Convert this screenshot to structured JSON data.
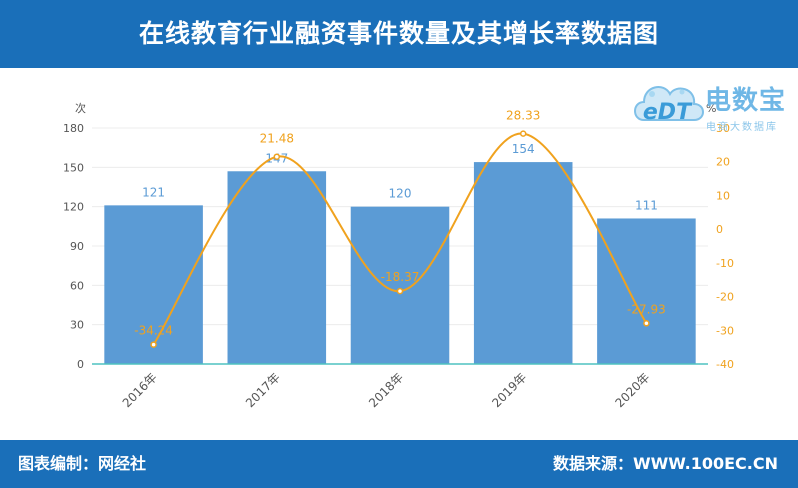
{
  "header": {
    "title": "在线教育行业融资事件数量及其增长率数据图"
  },
  "footer": {
    "left": "图表编制：网经社",
    "right": "数据来源：WWW.100EC.CN"
  },
  "logo": {
    "mark": "eDT",
    "main": "电数宝",
    "sub": "电商大数据库"
  },
  "colors": {
    "bar": "#5b9bd5",
    "line": "#f0a21e",
    "header": "#1a6fb9",
    "bar_label": "#5b9bd5",
    "line_label": "#f0a21e"
  },
  "chart_data": {
    "type": "bar",
    "categories": [
      "2016年",
      "2017年",
      "2018年",
      "2019年",
      "2020年"
    ],
    "series": [
      {
        "values": [
          121,
          147,
          120,
          154,
          111
        ],
        "axis": "left",
        "kind": "bar"
      },
      {
        "values": [
          -34.24,
          21.48,
          -18.37,
          28.33,
          -27.93
        ],
        "axis": "right",
        "kind": "line",
        "smooth": true
      }
    ],
    "left_axis": {
      "unit": "次",
      "ylim": [
        0,
        180
      ],
      "ticks": [
        0,
        30,
        60,
        90,
        120,
        150,
        180
      ]
    },
    "right_axis": {
      "unit": "%",
      "ylim": [
        -40,
        30
      ],
      "ticks": [
        -40,
        -30,
        -20,
        -10,
        0,
        10,
        20,
        30
      ]
    },
    "grid": true,
    "legend": "none"
  }
}
